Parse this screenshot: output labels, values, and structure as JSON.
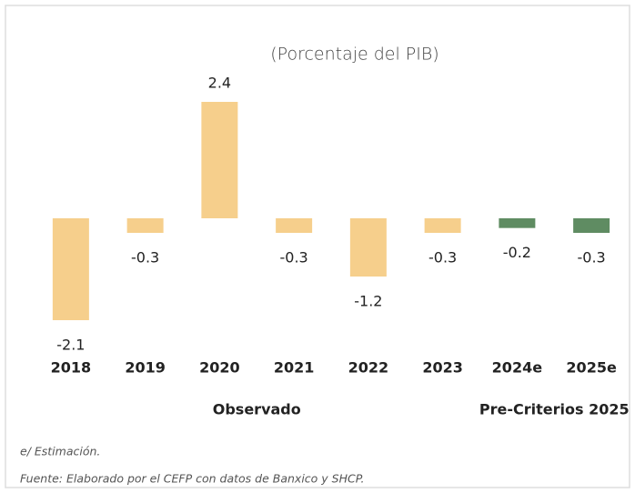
{
  "chart_data": {
    "type": "bar",
    "title": "(Porcentaje del PIB)",
    "categories": [
      "2018",
      "2019",
      "2020",
      "2021",
      "2022",
      "2023",
      "2024e",
      "2025e"
    ],
    "series": [
      {
        "name": "Observado",
        "color": "#f6cf8c",
        "values": [
          -2.1,
          -0.3,
          2.4,
          -0.3,
          -1.2,
          -0.3,
          null,
          null
        ]
      },
      {
        "name": "Pre-Criterios 2025",
        "color": "#5f8c62",
        "values": [
          null,
          null,
          null,
          null,
          null,
          null,
          -0.2,
          -0.3
        ]
      }
    ],
    "notes": [
      "e/ Estimación.",
      "Fuente: Elaborado por el CEFP con datos de Banxico y SHCP."
    ]
  }
}
